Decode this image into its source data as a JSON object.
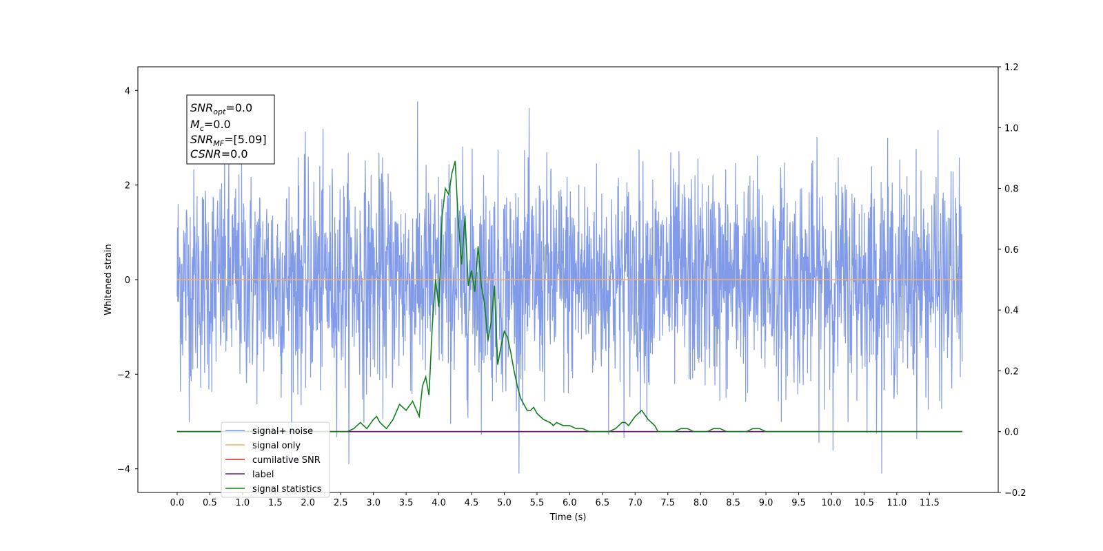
{
  "chart_data": {
    "type": "line",
    "title": "",
    "xlabel": "Time (s)",
    "ylabel": "Whitened strain",
    "xlim": [
      -0.6,
      12.55
    ],
    "ylim": [
      -4.5,
      4.5
    ],
    "y2lim": [
      -0.2,
      1.2
    ],
    "x_ticks": [
      "0.0",
      "0.5",
      "1.0",
      "1.5",
      "2.0",
      "2.5",
      "3.0",
      "3.5",
      "4.0",
      "4.5",
      "5.0",
      "5.5",
      "6.0",
      "6.5",
      "7.0",
      "7.5",
      "8.0",
      "8.5",
      "9.0",
      "9.5",
      "10.0",
      "10.5",
      "11.0",
      "11.5"
    ],
    "y_ticks": [
      "−4",
      "−2",
      "0",
      "2",
      "4"
    ],
    "y2_ticks": [
      "−0.2",
      "0.0",
      "0.2",
      "0.4",
      "0.6",
      "0.8",
      "1.0",
      "1.2"
    ],
    "grid": false,
    "legend_position": "lower-left",
    "annotation": {
      "snr_opt": {
        "main": "SNR",
        "sub": "opt",
        "value": "=0.0"
      },
      "mc": {
        "main": "M",
        "sub": "c",
        "value": "=0.0"
      },
      "snr_mf": {
        "main": "SNR",
        "sub": "MF",
        "value": "=[5.09]"
      },
      "csnr": {
        "main": "CSNR",
        "sub": "",
        "value": "=0.0"
      }
    },
    "series": [
      {
        "name": "signal+ noise",
        "color": "#7b96e8",
        "axis": "left",
        "kind": "noise",
        "x_range": [
          0.0,
          12.0
        ],
        "amplitude_std": 1.0
      },
      {
        "name": "signal only",
        "color": "#f5b06d",
        "axis": "left",
        "x": [
          0.0,
          12.0
        ],
        "y": [
          0.0,
          0.0
        ]
      },
      {
        "name": "cumilative SNR",
        "color": "#e8211d",
        "axis": "right",
        "x": [
          0.0,
          12.0
        ],
        "y": [
          0.0,
          0.0
        ]
      },
      {
        "name": "label",
        "color": "#6b1a7a",
        "axis": "right",
        "x": [
          0.0,
          12.0
        ],
        "y": [
          0.0,
          0.0
        ]
      },
      {
        "name": "signal statistics",
        "color": "#11801a",
        "axis": "right",
        "x": [
          0.0,
          2.4,
          2.6,
          2.7,
          2.8,
          2.9,
          3.0,
          3.05,
          3.1,
          3.2,
          3.3,
          3.4,
          3.5,
          3.6,
          3.7,
          3.75,
          3.8,
          3.85,
          3.9,
          3.95,
          4.0,
          4.05,
          4.1,
          4.15,
          4.2,
          4.25,
          4.3,
          4.35,
          4.4,
          4.45,
          4.5,
          4.55,
          4.6,
          4.65,
          4.7,
          4.75,
          4.8,
          4.85,
          4.9,
          4.95,
          5.0,
          5.05,
          5.1,
          5.15,
          5.2,
          5.25,
          5.3,
          5.35,
          5.4,
          5.45,
          5.5,
          5.6,
          5.7,
          5.75,
          5.8,
          5.9,
          6.0,
          6.1,
          6.2,
          6.3,
          6.4,
          6.5,
          6.6,
          6.7,
          6.8,
          6.85,
          6.9,
          7.0,
          7.1,
          7.2,
          7.3,
          7.35,
          7.4,
          7.5,
          7.6,
          7.7,
          7.8,
          7.9,
          8.0,
          8.1,
          8.2,
          8.3,
          8.4,
          8.5,
          8.6,
          8.7,
          8.8,
          8.9,
          9.0,
          9.1,
          9.3,
          9.5,
          12.0
        ],
        "y": [
          0.0,
          0.0,
          0.0,
          0.01,
          0.03,
          0.01,
          0.04,
          0.05,
          0.03,
          0.01,
          0.04,
          0.09,
          0.07,
          0.1,
          0.05,
          0.15,
          0.18,
          0.12,
          0.35,
          0.5,
          0.41,
          0.71,
          0.8,
          0.78,
          0.85,
          0.89,
          0.68,
          0.55,
          0.71,
          0.48,
          0.53,
          0.46,
          0.61,
          0.48,
          0.42,
          0.3,
          0.36,
          0.48,
          0.22,
          0.28,
          0.33,
          0.31,
          0.26,
          0.2,
          0.15,
          0.11,
          0.09,
          0.07,
          0.07,
          0.08,
          0.06,
          0.04,
          0.03,
          0.02,
          0.03,
          0.02,
          0.02,
          0.01,
          0.01,
          0.0,
          0.0,
          0.0,
          0.0,
          0.01,
          0.03,
          0.03,
          0.02,
          0.05,
          0.07,
          0.04,
          0.02,
          0.0,
          0.0,
          0.0,
          0.0,
          0.01,
          0.01,
          0.0,
          0.0,
          0.0,
          0.01,
          0.01,
          0.0,
          0.0,
          0.0,
          0.0,
          0.01,
          0.01,
          0.0,
          0.0,
          0.0,
          0.0,
          0.0
        ]
      }
    ]
  }
}
